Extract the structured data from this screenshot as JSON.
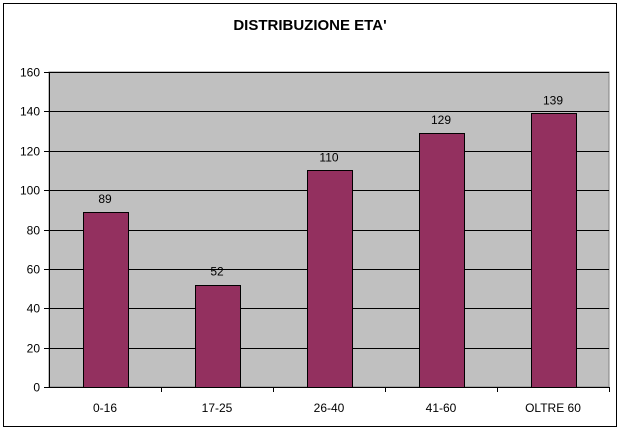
{
  "chart_data": {
    "type": "bar",
    "title": "DISTRIBUZIONE ETA'",
    "categories": [
      "0-16",
      "17-25",
      "26-40",
      "41-60",
      "OLTRE 60"
    ],
    "values": [
      89,
      52,
      110,
      129,
      139
    ],
    "xlabel": "",
    "ylabel": "",
    "ylim": [
      0,
      160
    ],
    "yticks": [
      0,
      20,
      40,
      60,
      80,
      100,
      120,
      140,
      160
    ],
    "grid": true,
    "legend": "none",
    "colors": {
      "bar": "#93305F",
      "plot_background": "#C0C0C0",
      "gridline": "#000000"
    }
  }
}
